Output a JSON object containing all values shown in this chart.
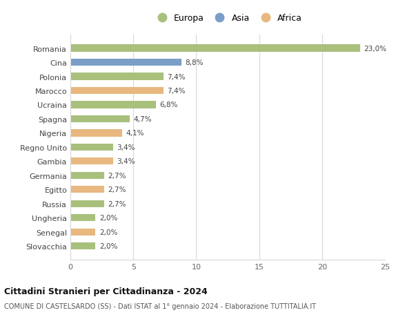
{
  "categories": [
    "Romania",
    "Cina",
    "Polonia",
    "Marocco",
    "Ucraina",
    "Spagna",
    "Nigeria",
    "Regno Unito",
    "Gambia",
    "Germania",
    "Egitto",
    "Russia",
    "Ungheria",
    "Senegal",
    "Slovacchia"
  ],
  "values": [
    23.0,
    8.8,
    7.4,
    7.4,
    6.8,
    4.7,
    4.1,
    3.4,
    3.4,
    2.7,
    2.7,
    2.7,
    2.0,
    2.0,
    2.0
  ],
  "labels": [
    "23,0%",
    "8,8%",
    "7,4%",
    "7,4%",
    "6,8%",
    "4,7%",
    "4,1%",
    "3,4%",
    "3,4%",
    "2,7%",
    "2,7%",
    "2,7%",
    "2,0%",
    "2,0%",
    "2,0%"
  ],
  "continents": [
    "Europa",
    "Asia",
    "Europa",
    "Africa",
    "Europa",
    "Europa",
    "Africa",
    "Europa",
    "Africa",
    "Europa",
    "Africa",
    "Europa",
    "Europa",
    "Africa",
    "Europa"
  ],
  "colors": {
    "Europa": "#a8c07c",
    "Asia": "#7a9ec8",
    "Africa": "#e8b880"
  },
  "legend_entries": [
    "Europa",
    "Asia",
    "Africa"
  ],
  "xlim": [
    0,
    25
  ],
  "xticks": [
    0,
    5,
    10,
    15,
    20,
    25
  ],
  "title": "Cittadini Stranieri per Cittadinanza - 2024",
  "subtitle": "COMUNE DI CASTELSARDO (SS) - Dati ISTAT al 1° gennaio 2024 - Elaborazione TUTTITALIA.IT",
  "bg_color": "#ffffff",
  "grid_color": "#d8d8d8",
  "bar_height": 0.5
}
